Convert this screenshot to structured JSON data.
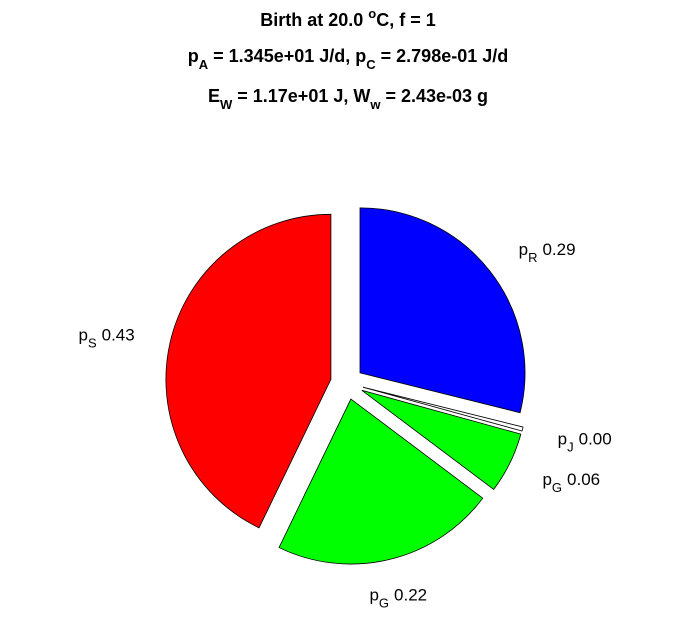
{
  "chart_data": {
    "type": "pie",
    "title": [
      [
        {
          "text": "Birth at 20.0 "
        },
        {
          "text": "o",
          "shift": "sup"
        },
        {
          "text": "C, f = 1"
        }
      ],
      [
        {
          "text": "p"
        },
        {
          "text": "A",
          "shift": "sub"
        },
        {
          "text": " = 1.345e+01 J/d, p"
        },
        {
          "text": "C",
          "shift": "sub"
        },
        {
          "text": " = 2.798e-01 J/d"
        }
      ],
      [
        {
          "text": "E"
        },
        {
          "text": "W",
          "shift": "sub"
        },
        {
          "text": " = 1.17e+01 J, W"
        },
        {
          "text": "w",
          "shift": "sub"
        },
        {
          "text": " = 2.43e-03 g"
        }
      ]
    ],
    "labels": [
      {
        "name": "p",
        "sub": "R"
      },
      {
        "name": "p",
        "sub": "J"
      },
      {
        "name": "p",
        "sub": "G"
      },
      {
        "name": "p",
        "sub": "G"
      },
      {
        "name": "p",
        "sub": "S"
      }
    ],
    "values": [
      0.29,
      0.004,
      0.06,
      0.22,
      0.43
    ],
    "value_labels": [
      "0.29",
      "0.00",
      "0.06",
      "0.22",
      "0.43"
    ],
    "colors": [
      "#0000ff",
      "#ffffff",
      "#00ff00",
      "#00ff00",
      "#ff0000"
    ],
    "explode": true,
    "direction": "clockwise"
  }
}
